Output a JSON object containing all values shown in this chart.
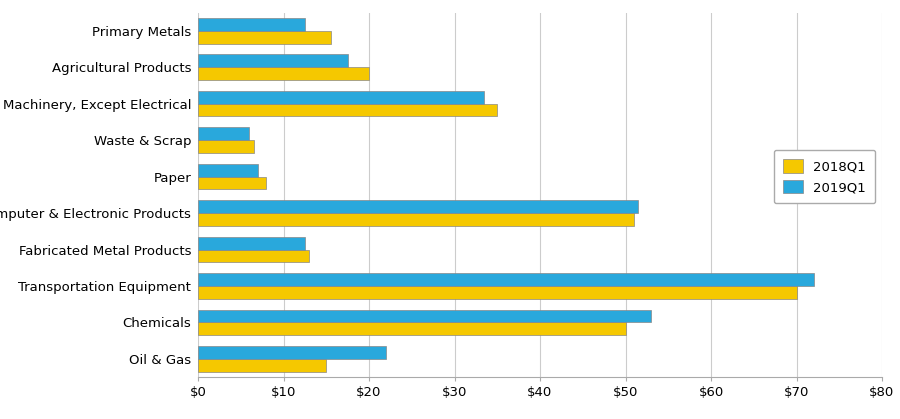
{
  "categories": [
    "Primary Metals",
    "Agricultural Products",
    "Machinery, Except Electrical",
    "Waste & Scrap",
    "Paper",
    "Computer & Electronic Products",
    "Fabricated Metal Products",
    "Transportation Equipment",
    "Chemicals",
    "Oil & Gas"
  ],
  "values_2018Q1": [
    15.5,
    20.0,
    35.0,
    6.5,
    8.0,
    51.0,
    13.0,
    70.0,
    50.0,
    15.0
  ],
  "values_2019Q1": [
    12.5,
    17.5,
    33.5,
    6.0,
    7.0,
    51.5,
    12.5,
    72.0,
    53.0,
    22.0
  ],
  "color_2018Q1": "#F5C800",
  "color_2019Q1": "#29A8DC",
  "legend_labels": [
    "2018Q1",
    "2019Q1"
  ],
  "xlim": [
    0,
    80
  ],
  "xticks": [
    0,
    10,
    20,
    30,
    40,
    50,
    60,
    70,
    80
  ],
  "bar_height": 0.35,
  "figsize": [
    9.0,
    4.19
  ],
  "dpi": 100,
  "grid_color": "#cccccc",
  "background_color": "#ffffff",
  "edge_color": "#888888"
}
